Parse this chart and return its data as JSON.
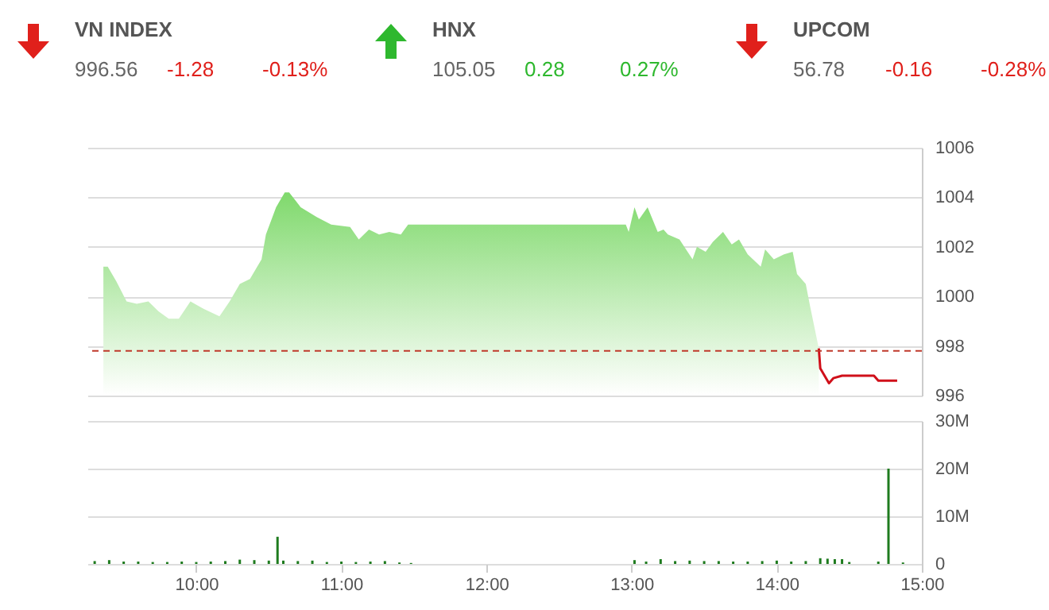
{
  "chart_data": [
    {
      "type": "other",
      "categories": [
        "VN INDEX",
        "HNX",
        "UPCOM"
      ],
      "values": [
        -1.28,
        0.28,
        -0.16
      ],
      "data_labels": true,
      "annotations": [
        "996.56",
        "-0.13%",
        "105.05",
        "0.27%",
        "56.78",
        "-0.28%"
      ],
      "colors": [
        "#e0201b",
        "#2eb82e",
        "#e0201b"
      ]
    },
    {
      "type": "area",
      "xlim": [
        9.25,
        15
      ],
      "ylim": [
        996,
        1006
      ],
      "yticks": [
        996,
        998,
        1000,
        1002,
        1004,
        1006
      ],
      "grid": "y",
      "tick_labels": "y",
      "series": [
        {
          "type": "area",
          "color": "#7fd96c",
          "x": [
            9.36,
            9.39,
            9.45,
            9.52,
            9.59,
            9.67,
            9.74,
            9.81,
            9.88,
            9.96,
            10.05,
            10.16,
            10.23,
            10.3,
            10.37,
            10.45,
            10.48,
            10.55,
            10.61,
            10.64,
            10.72,
            10.83,
            10.93,
            11.06,
            11.12,
            11.19,
            11.26,
            11.33,
            11.41,
            11.46,
            11.5,
            12.96,
            12.98,
            13.02,
            13.05,
            13.11,
            13.18,
            13.22,
            13.25,
            13.33,
            13.42,
            13.45,
            13.51,
            13.56,
            13.63,
            13.69,
            13.74,
            13.8,
            13.89,
            13.92,
            13.98,
            14.05,
            14.11,
            14.14,
            14.2,
            14.23,
            14.29
          ],
          "values": [
            1001.2,
            1001.2,
            1000.6,
            999.8,
            999.7,
            999.8,
            999.4,
            999.1,
            999.1,
            999.8,
            999.5,
            999.2,
            999.8,
            1000.5,
            1000.7,
            1001.5,
            1002.5,
            1003.6,
            1004.2,
            1004.2,
            1003.6,
            1003.2,
            1002.9,
            1002.8,
            1002.3,
            1002.7,
            1002.5,
            1002.6,
            1002.5,
            1002.9,
            1002.9,
            1002.9,
            1002.6,
            1003.6,
            1003.1,
            1003.6,
            1002.6,
            1002.7,
            1002.5,
            1002.3,
            1001.5,
            1002.0,
            1001.8,
            1002.2,
            1002.6,
            1002.1,
            1002.3,
            1001.7,
            1001.2,
            1001.9,
            1001.5,
            1001.7,
            1001.8,
            1000.9,
            1000.5,
            999.6,
            997.9
          ]
        },
        {
          "type": "line",
          "color": "#d0101a",
          "x": [
            14.29,
            14.3,
            14.36,
            14.39,
            14.45,
            14.67,
            14.7,
            14.83
          ],
          "values": [
            997.9,
            997.1,
            996.5,
            996.7,
            996.8,
            996.8,
            996.6,
            996.6
          ]
        }
      ],
      "ref_lines": [
        {
          "axis": "y",
          "value": 997.8,
          "color": "#c0392b",
          "line_style": "dashed"
        }
      ]
    },
    {
      "type": "bar",
      "color": "#1e7b1e",
      "xlim": [
        9.25,
        15
      ],
      "xticks": [
        {
          "value": 10,
          "label": "10:00"
        },
        {
          "value": 11,
          "label": "11:00"
        },
        {
          "value": 12,
          "label": "12:00"
        },
        {
          "value": 13,
          "label": "13:00"
        },
        {
          "value": 14,
          "label": "14:00"
        },
        {
          "value": 15,
          "label": "15:00"
        }
      ],
      "ylim": [
        0,
        30
      ],
      "yticks": [
        0,
        {
          "value": 10,
          "label": "10M"
        },
        {
          "value": 20,
          "label": "20M"
        },
        {
          "value": 30,
          "label": "30M"
        }
      ],
      "grid": "y",
      "x": [
        9.3,
        9.4,
        9.5,
        9.6,
        9.7,
        9.8,
        9.9,
        10.0,
        10.1,
        10.2,
        10.3,
        10.4,
        10.5,
        10.56,
        10.6,
        10.7,
        10.8,
        10.9,
        11.0,
        11.1,
        11.2,
        11.3,
        11.4,
        11.48,
        13.02,
        13.1,
        13.2,
        13.3,
        13.4,
        13.5,
        13.6,
        13.7,
        13.8,
        13.9,
        14.0,
        14.1,
        14.2,
        14.3,
        14.35,
        14.4,
        14.45,
        14.5,
        14.7,
        14.77,
        14.87
      ],
      "values": [
        0.6,
        0.8,
        0.5,
        0.5,
        0.4,
        0.4,
        0.5,
        0.4,
        0.5,
        0.6,
        0.9,
        0.8,
        0.7,
        5.7,
        0.7,
        0.6,
        0.7,
        0.4,
        0.5,
        0.4,
        0.5,
        0.6,
        0.3,
        0.2,
        0.8,
        0.5,
        1.0,
        0.6,
        0.7,
        0.6,
        0.6,
        0.5,
        0.5,
        0.6,
        0.7,
        0.5,
        0.6,
        1.2,
        1.1,
        1.0,
        1.0,
        0.4,
        0.5,
        20,
        0.3
      ]
    }
  ]
}
